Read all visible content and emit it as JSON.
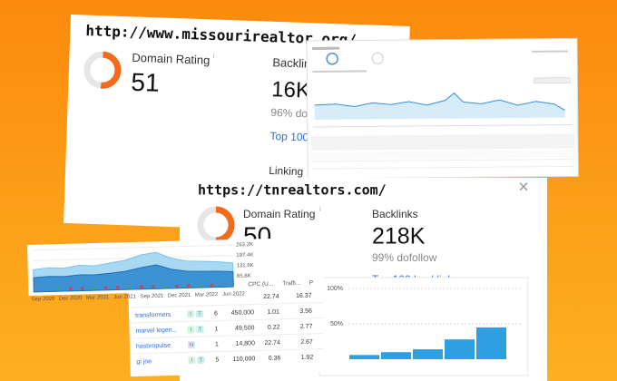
{
  "card1": {
    "url": "http://www.missourirealtor.org/",
    "domain_rating_label": "Domain Rating",
    "info": "i",
    "domain_rating": 51,
    "backlinks_label": "Backlin",
    "backlinks": "16K",
    "dofollow": "96% do",
    "top_link": "Top 100",
    "linking": "Linking"
  },
  "card3": {
    "url": "https://tnrealtors.com/",
    "close": "×",
    "domain_rating_label": "Domain Rating",
    "info": "i",
    "domain_rating": 50,
    "backlinks_label": "Backlinks",
    "backlinks": "218K",
    "dofollow": "99% dofollow",
    "top_link": "Top 100 backlinks"
  },
  "traffic_chart": {
    "type": "area",
    "ylim": [
      0,
      263200
    ],
    "yticks": [
      {
        "value": 263200,
        "label": "263.2K"
      },
      {
        "value": 197400,
        "label": "197.4K"
      },
      {
        "value": 131600,
        "label": "131.6K"
      },
      {
        "value": 65800,
        "label": "65.8K"
      }
    ],
    "xtick_labels": [
      "Sep 2020",
      "Dec 2020",
      "Mar 2021",
      "Jun 2021",
      "Sep 2021",
      "Dec 2021",
      "Mar 2022",
      "Jun 2022"
    ],
    "series": [
      {
        "color": "#a9d9f2",
        "values": [
          140000,
          150000,
          145000,
          160000,
          155000,
          170000,
          185000,
          215000,
          230000,
          190000,
          170000,
          165000,
          160000,
          150000
        ]
      },
      {
        "color": "#3d92d4",
        "values": [
          90000,
          95000,
          92000,
          100000,
          98000,
          105000,
          115000,
          135000,
          150000,
          120000,
          105000,
          102000,
          100000,
          95000
        ]
      }
    ]
  },
  "keywords_table": {
    "columns": [
      "CPC (U...",
      "Traffi...",
      "P"
    ],
    "partial_row": [
      "22.74",
      "16.37"
    ],
    "rows": [
      {
        "keyword": "transformers",
        "intents": [
          "I",
          "T"
        ],
        "position": "6",
        "volume": "450,000",
        "cpc": "1.01",
        "traffic": "3.56"
      },
      {
        "keyword": "marvel legen...",
        "intents": [
          "I",
          "T"
        ],
        "position": "1",
        "volume": "49,500",
        "cpc": "0.22",
        "traffic": "2.77"
      },
      {
        "keyword": "hasbropulse",
        "intents": [
          "N"
        ],
        "position": "1",
        "volume": "14,800",
        "cpc": "22.74",
        "traffic": "2.67"
      },
      {
        "keyword": "gi joe",
        "intents": [
          "I",
          "T"
        ],
        "position": "5",
        "volume": "110,000",
        "cpc": "0.36",
        "traffic": "1.92"
      }
    ]
  },
  "distribution_chart": {
    "type": "bar",
    "ylim": [
      0,
      100
    ],
    "yticks": [
      {
        "value": 100,
        "label": "100%"
      },
      {
        "value": 50,
        "label": "50%"
      }
    ],
    "values": [
      6,
      10,
      14,
      28,
      45
    ],
    "color": "#2e9fe0",
    "grid": true
  }
}
